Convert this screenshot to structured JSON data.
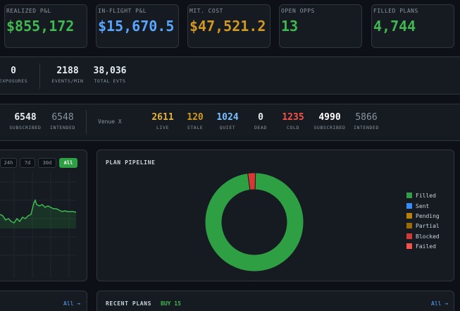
{
  "kpis": [
    {
      "label": "REALIZED P&L",
      "value": "$855,172",
      "color": "#3fb950"
    },
    {
      "label": "IN-FLIGHT P&L",
      "value": "$15,670.5",
      "color": "#58a6ff"
    },
    {
      "label": "MIT. COST",
      "value": "$47,521.2",
      "color": "#d29922"
    },
    {
      "label": "OPEN OPPS",
      "value": "13",
      "color": "#3fb950"
    },
    {
      "label": "FILLED PLANS",
      "value": "4,744",
      "color": "#3fb950"
    }
  ],
  "row2": {
    "exposures": {
      "value": "0",
      "label": "EXPOSURES"
    },
    "events_per_min": {
      "value": "2188",
      "label": "EVENTS/MIN"
    },
    "total_evts": {
      "value": "38,036",
      "label": "TOTAL EVTS"
    }
  },
  "row3": {
    "subscribed": {
      "value": "6548",
      "label": "SUBSCRIBED"
    },
    "intended": {
      "value": "6548",
      "label": "INTENDED"
    },
    "venue_label": "Venue X",
    "venue_stats": [
      {
        "value": "2611",
        "label": "LIVE",
        "color": "#e3b341"
      },
      {
        "value": "120",
        "label": "STALE",
        "color": "#d29922"
      },
      {
        "value": "1024",
        "label": "QUIET",
        "color": "#79c0ff"
      },
      {
        "value": "0",
        "label": "DEAD",
        "color": "#e6edf3"
      },
      {
        "value": "1235",
        "label": "COLD",
        "color": "#f85149"
      },
      {
        "value": "4990",
        "label": "SUBSCRIBED",
        "color": "#ffffff"
      },
      {
        "value": "5866",
        "label": "INTENDED",
        "color": "#8b949e"
      }
    ]
  },
  "range_buttons": [
    {
      "label": "24h",
      "active": false
    },
    {
      "label": "7d",
      "active": false
    },
    {
      "label": "30d",
      "active": false
    },
    {
      "label": "All",
      "active": true
    }
  ],
  "pipeline": {
    "title": "PLAN PIPELINE",
    "legend": [
      {
        "label": "Filled",
        "color": "#2ea043"
      },
      {
        "label": "Sent",
        "color": "#388bfd"
      },
      {
        "label": "Pending",
        "color": "#bb8009"
      },
      {
        "label": "Partial",
        "color": "#9e6a03"
      },
      {
        "label": "Blocked",
        "color": "#da3633"
      },
      {
        "label": "Failed",
        "color": "#f85149"
      }
    ]
  },
  "chart_data": {
    "type": "pie",
    "categories": [
      "Filled",
      "Blocked"
    ],
    "values": [
      97.5,
      2.5
    ],
    "colors": [
      "#2ea043",
      "#da3633"
    ]
  },
  "bottom": {
    "left_link": "All →",
    "recent_title": "RECENT PLANS",
    "recent_tag": "BUY 15",
    "right_link": "All →"
  }
}
